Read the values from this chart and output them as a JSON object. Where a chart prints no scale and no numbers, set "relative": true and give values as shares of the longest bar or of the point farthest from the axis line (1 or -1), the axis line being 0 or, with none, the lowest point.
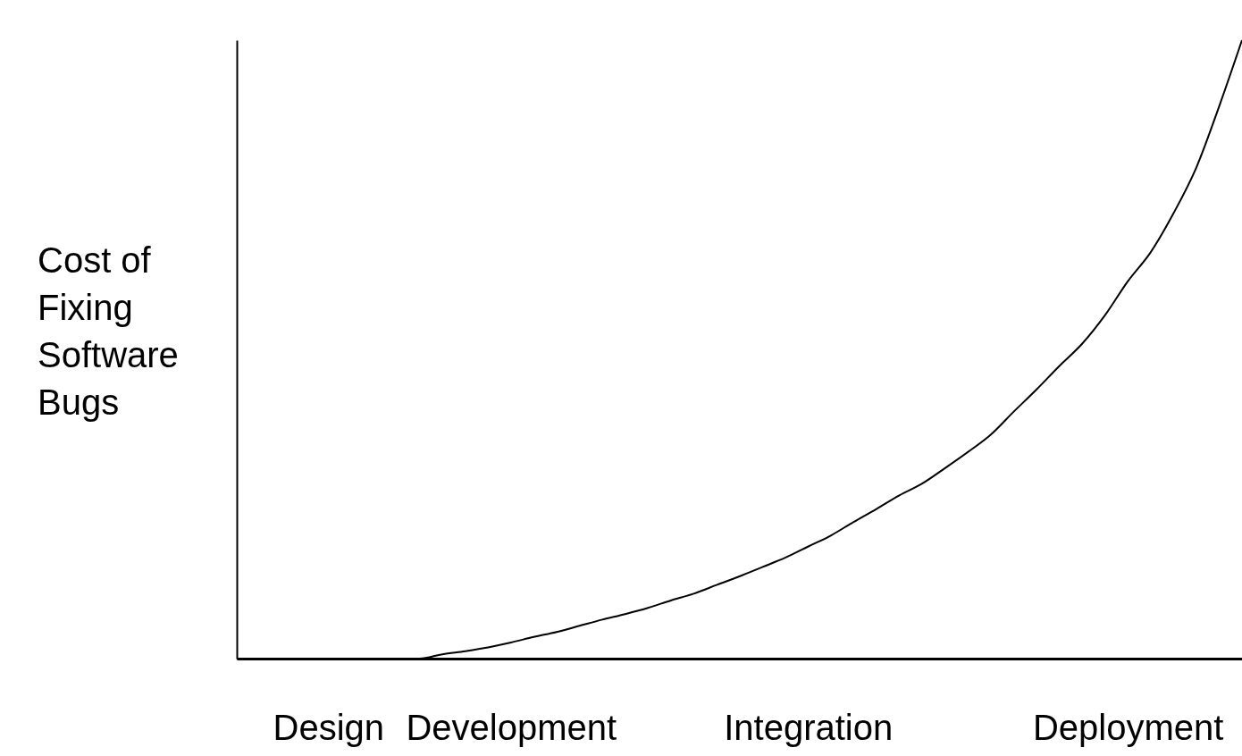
{
  "chart_data": {
    "type": "line",
    "relative": true,
    "ylabel": "Cost of Fixing Software Bugs",
    "color": "#000000",
    "categories": [
      null,
      null,
      null,
      null,
      "Design",
      null,
      null,
      null,
      null,
      null,
      null,
      null,
      "Development",
      null,
      null,
      null,
      null,
      null,
      null,
      null,
      null,
      null,
      null,
      null,
      null,
      "Integration",
      null,
      null,
      null,
      null,
      null,
      null,
      null,
      null,
      null,
      null,
      null,
      null,
      null,
      "Deployment",
      null,
      null,
      null,
      null,
      null
    ],
    "values": [
      0,
      0,
      0,
      0,
      0,
      0,
      0,
      0,
      0,
      0.007,
      0.012,
      0.018,
      0.026,
      0.035,
      0.043,
      0.053,
      0.063,
      0.072,
      0.082,
      0.094,
      0.105,
      0.119,
      0.133,
      0.148,
      0.163,
      0.181,
      0.199,
      0.221,
      0.242,
      0.264,
      0.283,
      0.308,
      0.334,
      0.362,
      0.399,
      0.435,
      0.473,
      0.509,
      0.555,
      0.61,
      0.657,
      0.72,
      0.794,
      0.893,
      1
    ]
  }
}
